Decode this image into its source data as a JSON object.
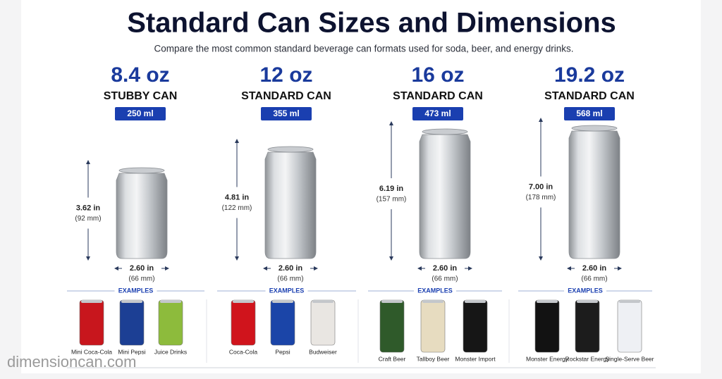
{
  "header": {
    "title": "Standard Can Sizes and Dimensions",
    "subtitle": "Compare the most common standard beverage can formats used for soda, beer, and energy drinks."
  },
  "cans": [
    {
      "size": "8.4 oz",
      "label": "STUBBY CAN",
      "volume": "250 ml",
      "height": "3.62 in",
      "height_mm": "(92 mm)",
      "width": "2.60 in",
      "width_mm": "(66 mm)",
      "examples_label": "EXAMPLES",
      "examples": [
        {
          "name": "Mini Coca-Cola",
          "color": "#c8161d"
        },
        {
          "name": "Mini Pepsi",
          "color": "#1c3f94"
        },
        {
          "name": "Juice Drinks",
          "color": "#8dbb3c"
        }
      ]
    },
    {
      "size": "12 oz",
      "label": "STANDARD CAN",
      "volume": "355 ml",
      "height": "4.81 in",
      "height_mm": "(122 mm)",
      "width": "2.60 in",
      "width_mm": "(66 mm)",
      "examples_label": "EXAMPLES",
      "examples": [
        {
          "name": "Coca-Cola",
          "color": "#d0141c"
        },
        {
          "name": "Pepsi",
          "color": "#1b45a8"
        },
        {
          "name": "Budweiser",
          "color": "#e9e6e2"
        }
      ]
    },
    {
      "size": "16 oz",
      "label": "STANDARD CAN",
      "volume": "473 ml",
      "height": "6.19 in",
      "height_mm": "(157 mm)",
      "width": "2.60 in",
      "width_mm": "(66 mm)",
      "examples_label": "EXAMPLES",
      "examples": [
        {
          "name": "Craft Beer",
          "color": "#2f5a2a"
        },
        {
          "name": "Tallboy Beer",
          "color": "#e7dcc0"
        },
        {
          "name": "Monster Import",
          "color": "#161616"
        }
      ]
    },
    {
      "size": "19.2 oz",
      "label": "STANDARD CAN",
      "volume": "568 ml",
      "height": "7.00 in",
      "height_mm": "(178 mm)",
      "width": "2.60 in",
      "width_mm": "(66 mm)",
      "examples_label": "EXAMPLES",
      "examples": [
        {
          "name": "Monster Energy",
          "color": "#121212"
        },
        {
          "name": "Rockstar Energy",
          "color": "#1c1c1c"
        },
        {
          "name": "Single-Serve Beer",
          "color": "#eef0f4"
        }
      ]
    }
  ],
  "watermark": "dimensioncan.com"
}
